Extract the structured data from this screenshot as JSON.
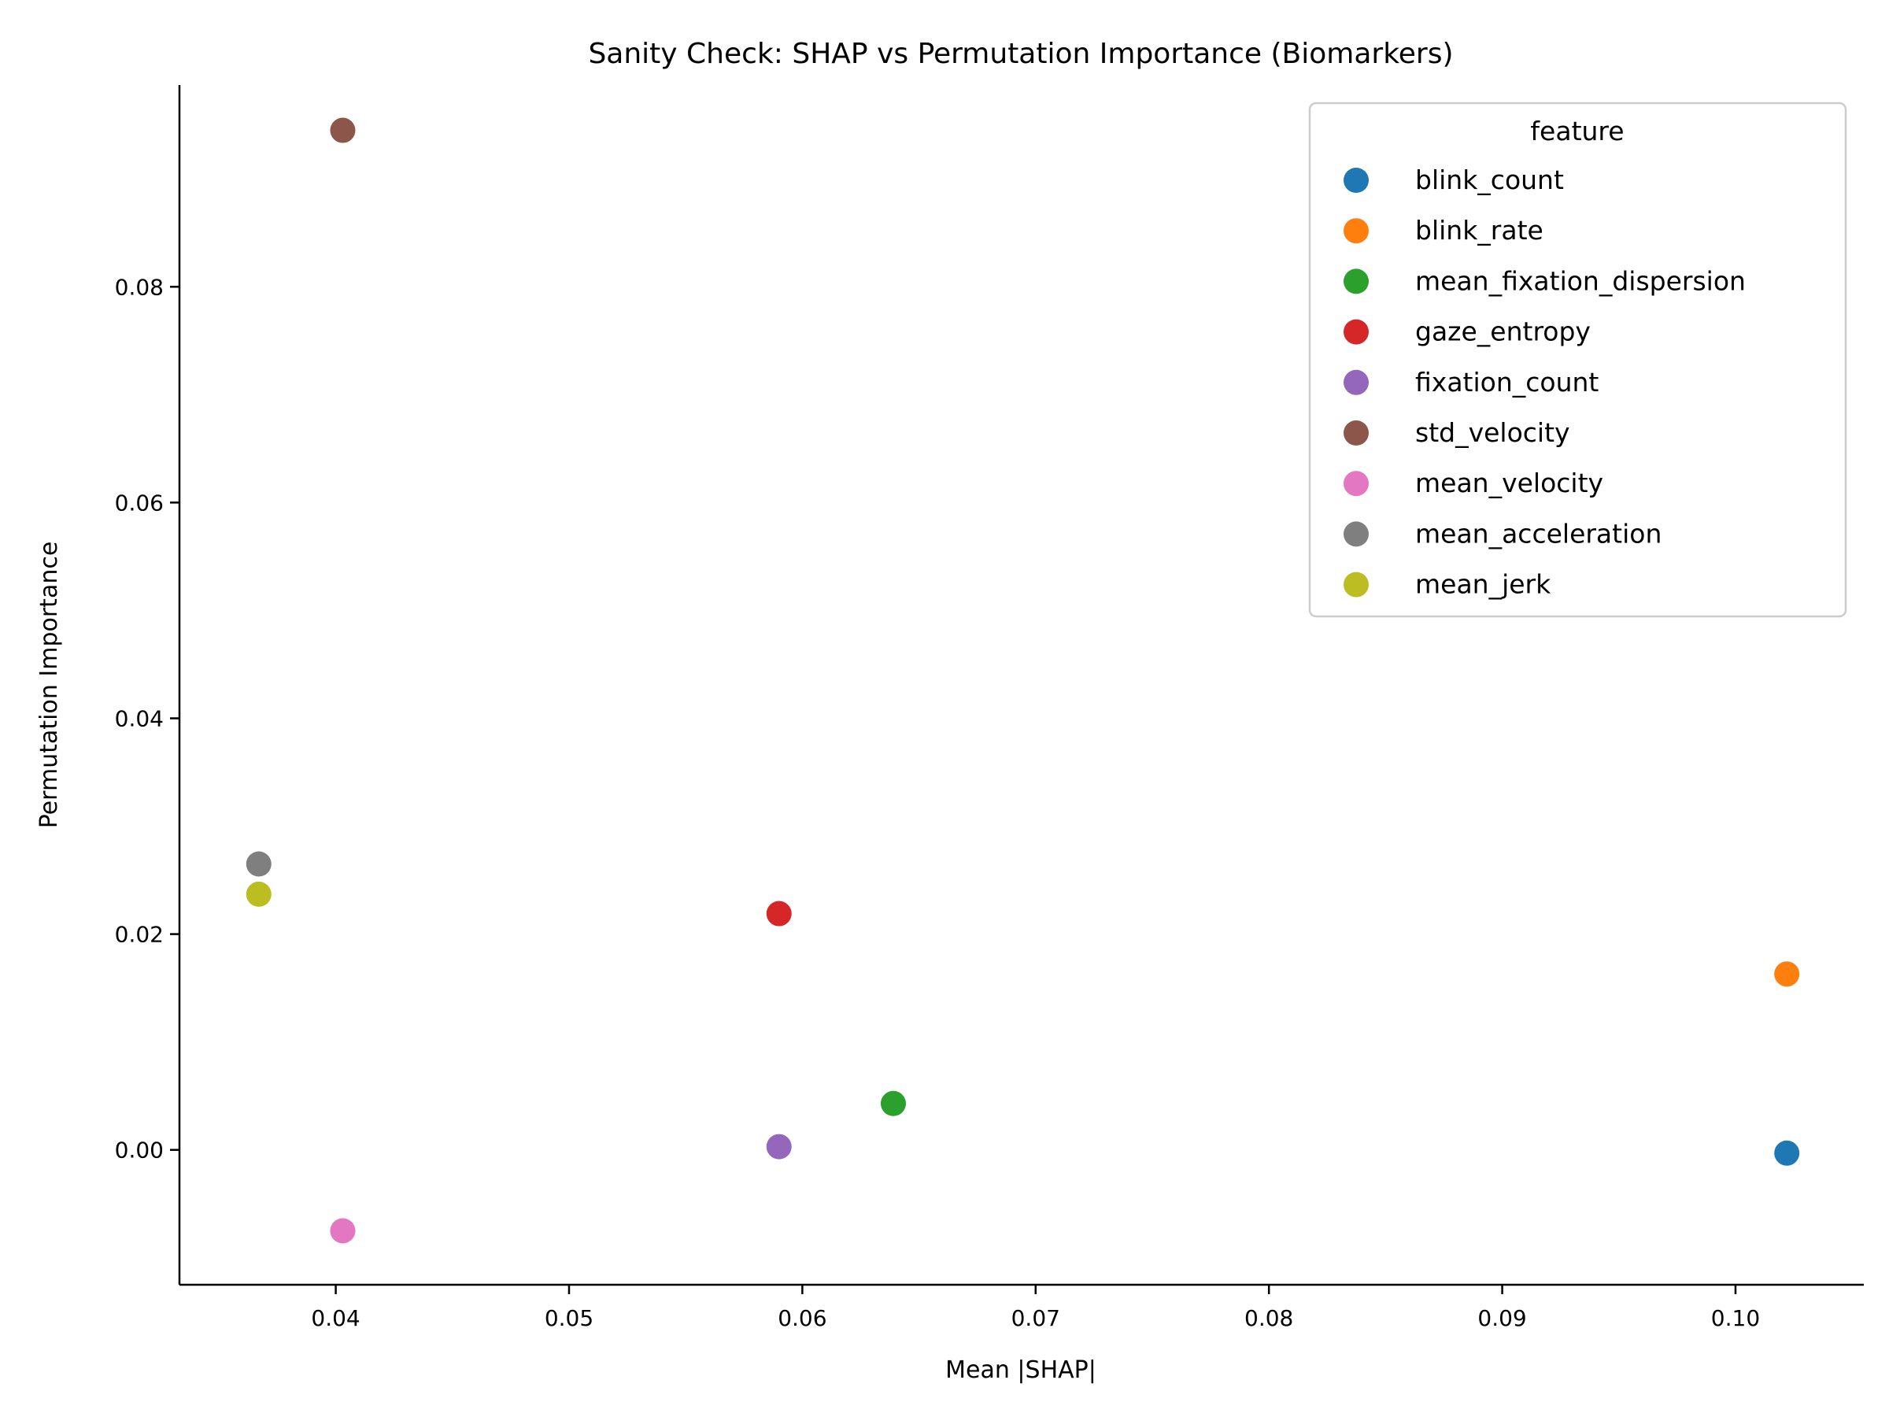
{
  "chart_data": {
    "type": "scatter",
    "title": "Sanity Check: SHAP vs Permutation Importance (Biomarkers)",
    "xlabel": "Mean |SHAP|",
    "ylabel": "Permutation Importance",
    "xlim": [
      0.0333,
      0.1055
    ],
    "ylim": [
      -0.0125,
      0.0987
    ],
    "xticks": [
      0.04,
      0.05,
      0.06,
      0.07,
      0.08,
      0.09,
      0.1
    ],
    "xtick_labels": [
      "0.04",
      "0.05",
      "0.06",
      "0.07",
      "0.08",
      "0.09",
      "0.10"
    ],
    "yticks": [
      0.0,
      0.02,
      0.04,
      0.06,
      0.08
    ],
    "ytick_labels": [
      "0.00",
      "0.02",
      "0.04",
      "0.06",
      "0.08"
    ],
    "grid": false,
    "legend": {
      "title": "feature",
      "placement": "upper right"
    },
    "series": [
      {
        "name": "blink_count",
        "color": "#1f77b4",
        "x": 0.1022,
        "y": -0.0003
      },
      {
        "name": "blink_rate",
        "color": "#ff7f0e",
        "x": 0.1022,
        "y": 0.0163
      },
      {
        "name": "mean_fixation_dispersion",
        "color": "#2ca02c",
        "x": 0.0639,
        "y": 0.0043
      },
      {
        "name": "gaze_entropy",
        "color": "#d62728",
        "x": 0.059,
        "y": 0.0219
      },
      {
        "name": "fixation_count",
        "color": "#9467bd",
        "x": 0.059,
        "y": 0.0003
      },
      {
        "name": "std_velocity",
        "color": "#8c564b",
        "x": 0.0403,
        "y": 0.0945
      },
      {
        "name": "mean_velocity",
        "color": "#e377c2",
        "x": 0.0403,
        "y": -0.0075
      },
      {
        "name": "mean_acceleration",
        "color": "#7f7f7f",
        "x": 0.0367,
        "y": 0.0265
      },
      {
        "name": "mean_jerk",
        "color": "#bcbd22",
        "x": 0.0367,
        "y": 0.0237
      }
    ]
  }
}
